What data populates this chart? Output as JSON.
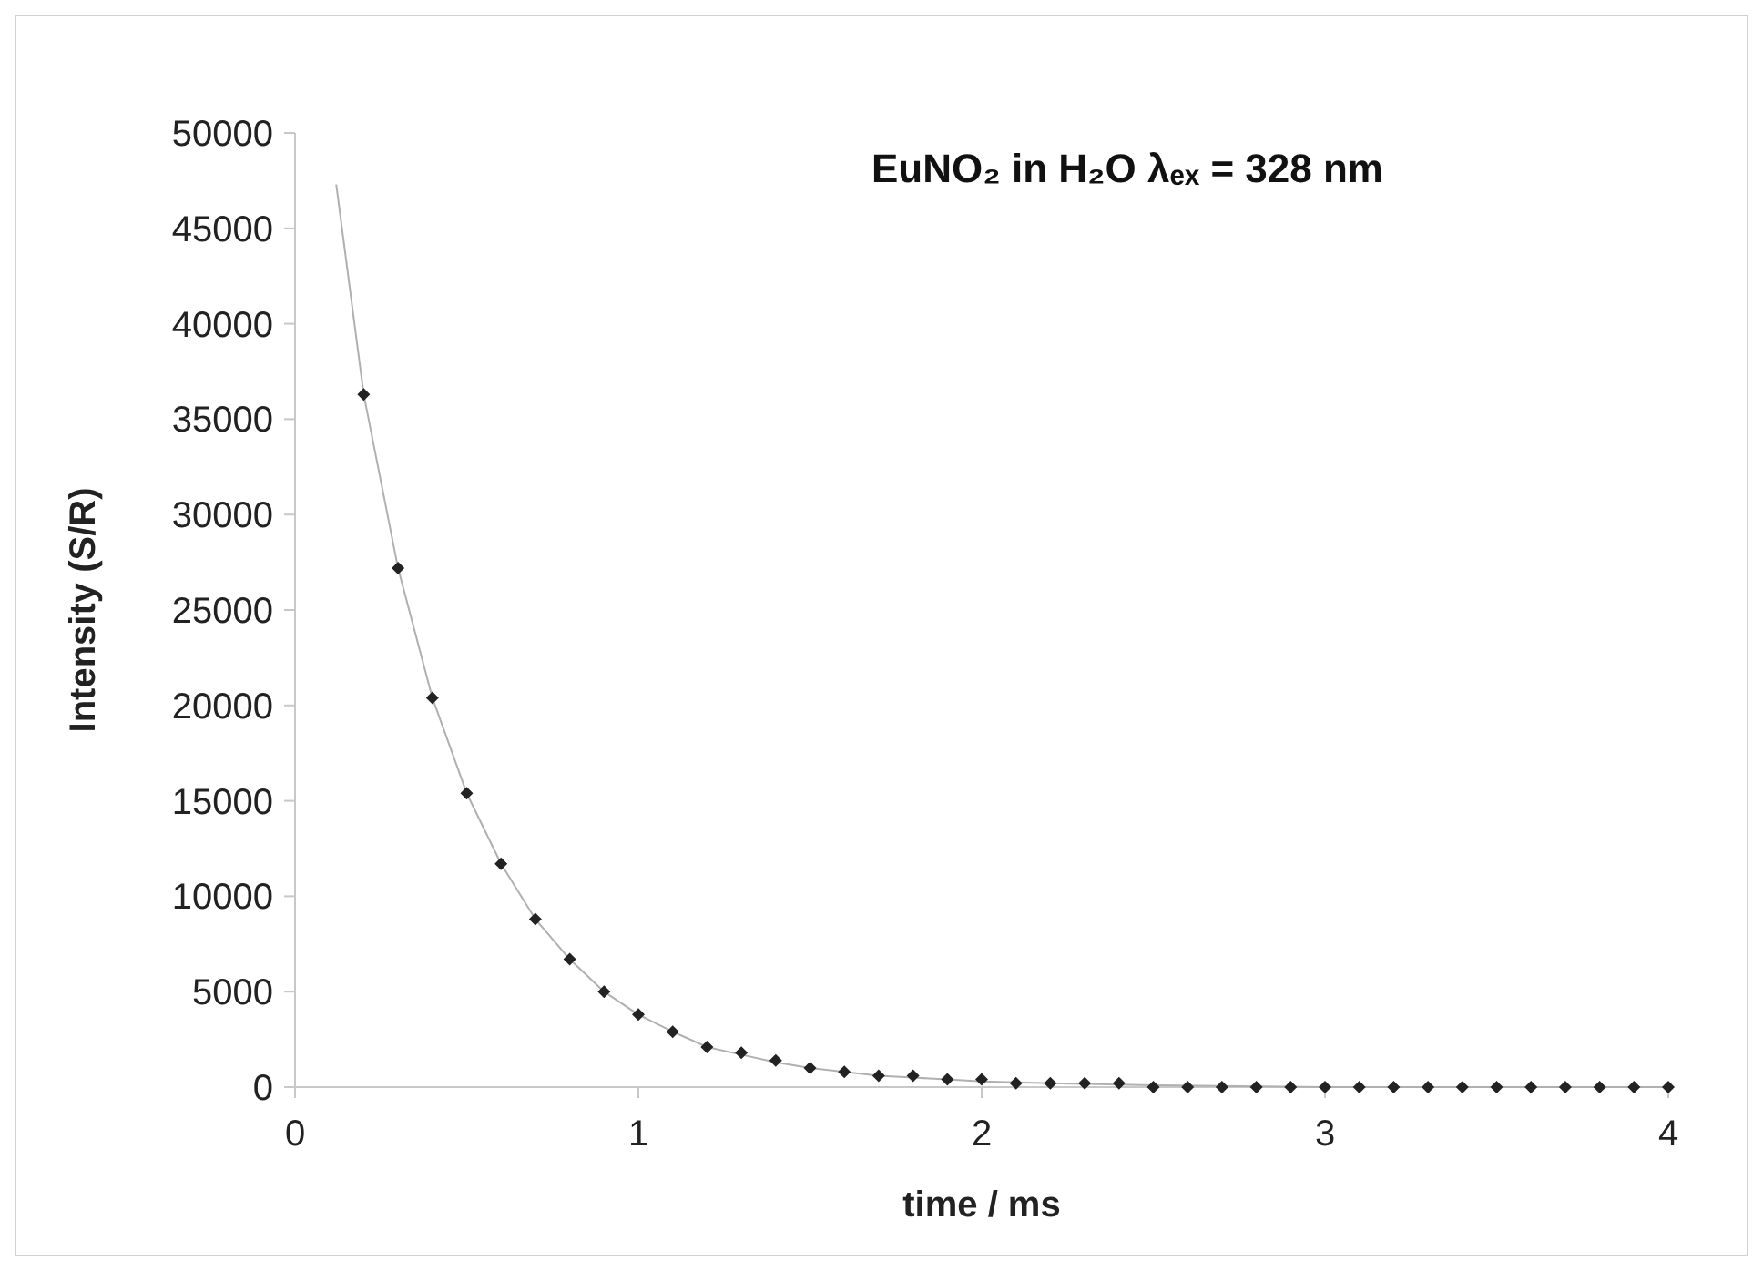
{
  "chart_data": {
    "type": "scatter",
    "title": "EuNO₂ in H₂O λₑₓ = 328 nm",
    "xlabel": "time / ms",
    "ylabel": "Intensity (S/R)",
    "xlim": [
      0,
      4
    ],
    "xticks": [
      0,
      1,
      2,
      3,
      4
    ],
    "ylim": [
      0,
      50000
    ],
    "yticks": [
      0,
      5000,
      10000,
      15000,
      20000,
      25000,
      30000,
      35000,
      40000,
      45000,
      50000
    ],
    "grid": false,
    "series": [
      {
        "type": "line",
        "color": "#b0b0b0",
        "x": [
          0.12,
          0.2,
          0.3,
          0.4,
          0.5,
          0.6,
          0.7,
          0.8,
          0.9,
          1.0,
          1.1,
          1.2,
          1.3,
          1.4,
          1.5,
          1.6,
          1.7,
          1.8,
          1.9,
          2.0,
          2.2,
          2.5,
          3.0,
          3.5,
          4.0
        ],
        "values": [
          47300,
          36300,
          27200,
          20400,
          15400,
          11700,
          8800,
          6700,
          5000,
          3800,
          2900,
          2100,
          1700,
          1300,
          1000,
          800,
          600,
          500,
          400,
          300,
          200,
          100,
          0,
          0,
          0
        ]
      },
      {
        "marker": "diamond",
        "color": "#222222",
        "x": [
          0.2,
          0.3,
          0.4,
          0.5,
          0.6,
          0.7,
          0.8,
          0.9,
          1.0,
          1.1,
          1.2,
          1.3,
          1.4,
          1.5,
          1.6,
          1.7,
          1.8,
          1.9,
          2.0,
          2.1,
          2.2,
          2.3,
          2.4,
          2.5,
          2.6,
          2.7,
          2.8,
          2.9,
          3.0,
          3.1,
          3.2,
          3.3,
          3.4,
          3.5,
          3.6,
          3.7,
          3.8,
          3.9,
          4.0
        ],
        "values": [
          36300,
          27200,
          20400,
          15400,
          11700,
          8800,
          6700,
          5000,
          3800,
          2900,
          2100,
          1800,
          1400,
          1000,
          800,
          600,
          600,
          400,
          400,
          200,
          200,
          200,
          200,
          0,
          0,
          0,
          0,
          0,
          0,
          0,
          0,
          0,
          0,
          0,
          0,
          0,
          0,
          0,
          0
        ]
      }
    ]
  }
}
